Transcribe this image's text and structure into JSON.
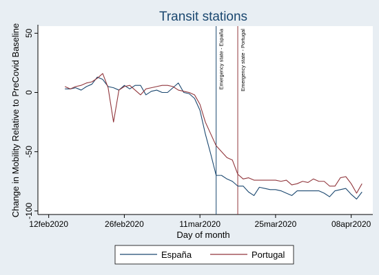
{
  "chart_data": {
    "type": "line",
    "title": "Transit stations",
    "xlabel": "Day of month",
    "ylabel": "Change in Mobility Relative to PreCovid Baseline",
    "x_start": "2020-02-15",
    "x_ticks": [
      "12feb2020",
      "26feb2020",
      "11mar2020",
      "25mar2020",
      "08apr2020"
    ],
    "y_ticks": [
      "50",
      "0",
      "-50",
      "-100"
    ],
    "xlim": [
      "2020-02-10",
      "2020-04-12"
    ],
    "ylim": [
      -103,
      56
    ],
    "grid": false,
    "legend_position": "bottom",
    "vertical_lines": [
      {
        "date": "2020-03-14",
        "label": "Emergency state - España",
        "color": "#1a476f"
      },
      {
        "date": "2020-03-18",
        "label": "Emergency state - Portugal",
        "color": "#90353b"
      }
    ],
    "series": [
      {
        "name": "España",
        "color": "#1a476f",
        "values": [
          3,
          3,
          4,
          2,
          5,
          7,
          13,
          11,
          5,
          4,
          2,
          6,
          3,
          6,
          6,
          -2,
          1,
          2,
          0,
          0,
          4,
          8,
          0,
          -1,
          -5,
          -15,
          -35,
          -52,
          -70,
          -70,
          -73,
          -75,
          -79,
          -79,
          -84,
          -87,
          -80,
          -81,
          -82,
          -82,
          -83,
          -85,
          -87,
          -83,
          -83,
          -83,
          -83,
          -83,
          -85,
          -88,
          -83,
          -82,
          -81,
          -86,
          -90,
          -84
        ]
      },
      {
        "name": "Portugal",
        "color": "#90353b",
        "values": [
          5,
          3,
          5,
          6,
          8,
          9,
          12,
          16,
          4,
          -25,
          2,
          5,
          6,
          2,
          -2,
          3,
          4,
          5,
          6,
          6,
          5,
          2,
          1,
          0,
          -2,
          -10,
          -25,
          -35,
          -45,
          -50,
          -55,
          -57,
          -69,
          -73,
          -72,
          -74,
          -74,
          -74,
          -74,
          -74,
          -75,
          -74,
          -78,
          -77,
          -75,
          -76,
          -73,
          -75,
          -75,
          -79,
          -79,
          -72,
          -71,
          -77,
          -85,
          -77
        ]
      }
    ]
  }
}
